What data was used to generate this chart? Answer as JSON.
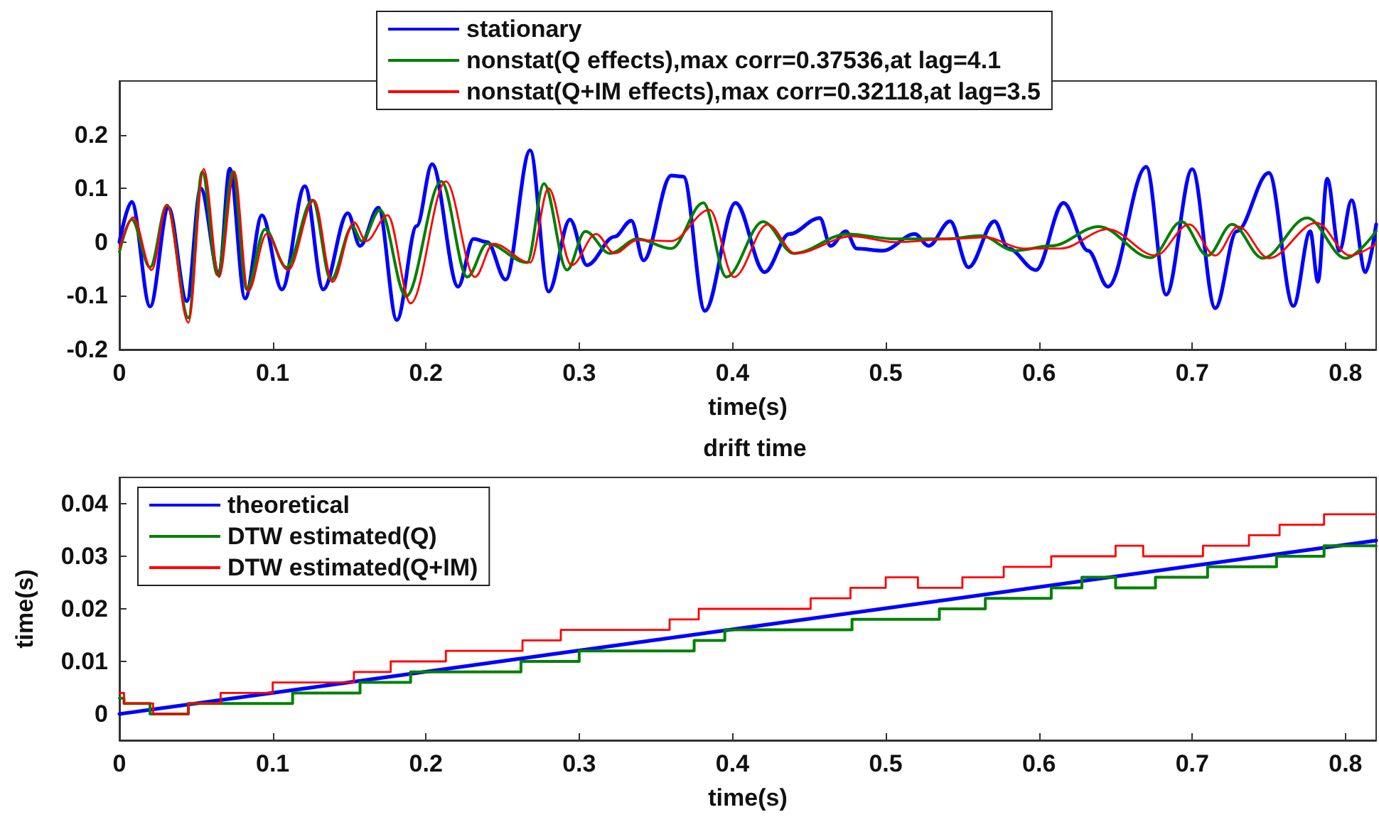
{
  "chart_data": [
    {
      "type": "line",
      "xlabel": "time(s)",
      "xlim": [
        0,
        0.82
      ],
      "xticks": [
        0,
        0.1,
        0.2,
        0.3,
        0.4,
        0.5,
        0.6,
        0.7,
        0.8
      ],
      "ylim": [
        -0.2,
        0.3
      ],
      "yticks": [
        -0.2,
        -0.1,
        0,
        0.1,
        0.2
      ],
      "legend": "top",
      "grid": false,
      "marker": "none",
      "series": [
        {
          "name": "stationary",
          "color": "#0000ff",
          "x": [
            0,
            0.008,
            0.02,
            0.032,
            0.044,
            0.053,
            0.065,
            0.072,
            0.082,
            0.093,
            0.106,
            0.121,
            0.133,
            0.149,
            0.157,
            0.169,
            0.181,
            0.194,
            0.204,
            0.221,
            0.231,
            0.24,
            0.252,
            0.268,
            0.28,
            0.294,
            0.305,
            0.323,
            0.334,
            0.342,
            0.36,
            0.368,
            0.382,
            0.402,
            0.421,
            0.437,
            0.457,
            0.464,
            0.474,
            0.481,
            0.498,
            0.519,
            0.528,
            0.542,
            0.554,
            0.571,
            0.58,
            0.598,
            0.616,
            0.632,
            0.645,
            0.67,
            0.683,
            0.7,
            0.715,
            0.729,
            0.75,
            0.766,
            0.777,
            0.782,
            0.788,
            0.796,
            0.804,
            0.813,
            0.82
          ],
          "values": [
            0,
            0.075,
            -0.12,
            0.064,
            -0.11,
            0.1,
            -0.06,
            0.137,
            -0.105,
            0.05,
            -0.088,
            0.104,
            -0.088,
            0.054,
            -0.007,
            0.064,
            -0.145,
            0.03,
            0.145,
            -0.083,
            0.006,
            0,
            -0.07,
            0.171,
            -0.092,
            0.042,
            -0.043,
            0.01,
            0.04,
            -0.034,
            0.124,
            0.122,
            -0.128,
            0.073,
            -0.056,
            0.015,
            0.045,
            -0.007,
            0.02,
            -0.012,
            -0.016,
            0.015,
            -0.007,
            0.039,
            -0.047,
            0.039,
            -0.012,
            -0.052,
            0.073,
            -0.016,
            -0.083,
            0.14,
            -0.098,
            0.136,
            -0.123,
            0.02,
            0.129,
            -0.119,
            0.02,
            -0.074,
            0.118,
            -0.016,
            0.078,
            -0.056,
            0.033
          ]
        },
        {
          "name": "nonstat(Q effects),max corr=0.37536,at lag=4.1",
          "color": "#008000",
          "x": [
            0,
            0.008,
            0.02,
            0.031,
            0.045,
            0.054,
            0.064,
            0.074,
            0.083,
            0.095,
            0.109,
            0.126,
            0.138,
            0.152,
            0.158,
            0.17,
            0.187,
            0.21,
            0.227,
            0.24,
            0.266,
            0.277,
            0.292,
            0.304,
            0.32,
            0.338,
            0.36,
            0.381,
            0.396,
            0.42,
            0.44,
            0.475,
            0.506,
            0.54,
            0.562,
            0.584,
            0.608,
            0.639,
            0.673,
            0.693,
            0.71,
            0.726,
            0.746,
            0.775,
            0.8,
            0.82
          ],
          "values": [
            -0.018,
            0.042,
            -0.047,
            0.069,
            -0.141,
            0.131,
            -0.061,
            0.131,
            -0.088,
            0.024,
            -0.047,
            0.078,
            -0.07,
            0.029,
            0.002,
            0.06,
            -0.101,
            0.113,
            -0.065,
            -0.003,
            -0.038,
            0.109,
            -0.052,
            0.02,
            -0.021,
            0.006,
            -0.012,
            0.073,
            -0.065,
            0.038,
            -0.021,
            0.015,
            0.006,
            0.006,
            0.012,
            -0.016,
            -0.007,
            0.029,
            -0.029,
            0.038,
            -0.025,
            0.033,
            -0.03,
            0.045,
            -0.03,
            0.02
          ]
        },
        {
          "name": "nonstat(Q+IM effects),max corr=0.32118,at lag=3.5",
          "color": "#ff0000",
          "x": [
            0,
            0.009,
            0.021,
            0.031,
            0.045,
            0.055,
            0.065,
            0.075,
            0.084,
            0.096,
            0.11,
            0.127,
            0.139,
            0.153,
            0.161,
            0.175,
            0.19,
            0.213,
            0.232,
            0.244,
            0.268,
            0.28,
            0.295,
            0.311,
            0.323,
            0.338,
            0.36,
            0.385,
            0.401,
            0.423,
            0.441,
            0.478,
            0.506,
            0.543,
            0.565,
            0.59,
            0.614,
            0.645,
            0.676,
            0.698,
            0.715,
            0.73,
            0.75,
            0.781,
            0.803,
            0.82
          ],
          "values": [
            -0.012,
            0.046,
            -0.052,
            0.069,
            -0.15,
            0.136,
            -0.065,
            0.131,
            -0.092,
            0.015,
            -0.052,
            0.078,
            -0.074,
            0.037,
            0.002,
            0.05,
            -0.114,
            0.113,
            -0.065,
            -0.003,
            -0.038,
            0.1,
            -0.043,
            0.015,
            -0.021,
            0.004,
            0.002,
            0.06,
            -0.065,
            0.033,
            -0.021,
            0.011,
            0,
            0.006,
            0.009,
            -0.012,
            -0.012,
            0.024,
            -0.025,
            0.033,
            -0.025,
            0.029,
            -0.03,
            0.036,
            -0.025,
            -0.003
          ]
        }
      ]
    },
    {
      "type": "step",
      "title": "drift time",
      "xlabel": "time(s)",
      "ylabel": "time(s)",
      "xlim": [
        0,
        0.82
      ],
      "xticks": [
        0,
        0.1,
        0.2,
        0.3,
        0.4,
        0.5,
        0.6,
        0.7,
        0.8
      ],
      "ylim": [
        -0.005,
        0.045
      ],
      "yticks": [
        0,
        0.01,
        0.02,
        0.03,
        0.04
      ],
      "legend": "top left",
      "grid": false,
      "marker": "none",
      "series": [
        {
          "name": "theoretical",
          "type": "line",
          "color": "#0000ff",
          "x": [
            0,
            0.82
          ],
          "values": [
            0,
            0.033
          ]
        },
        {
          "name": "DTW estimated(Q)",
          "color": "#008000",
          "x": [
            0,
            0.003,
            0.02,
            0.045,
            0.113,
            0.157,
            0.19,
            0.262,
            0.3,
            0.375,
            0.395,
            0.478,
            0.535,
            0.565,
            0.608,
            0.628,
            0.65,
            0.676,
            0.71,
            0.755,
            0.786,
            0.82
          ],
          "values": [
            0.003,
            0.002,
            0,
            0.002,
            0.004,
            0.006,
            0.008,
            0.01,
            0.012,
            0.014,
            0.016,
            0.018,
            0.02,
            0.022,
            0.024,
            0.026,
            0.024,
            0.026,
            0.028,
            0.03,
            0.032,
            0.032
          ]
        },
        {
          "name": "DTW estimated(Q+IM)",
          "color": "#ff0000",
          "x": [
            0,
            0.003,
            0.022,
            0.045,
            0.066,
            0.1,
            0.153,
            0.177,
            0.213,
            0.263,
            0.288,
            0.359,
            0.378,
            0.451,
            0.477,
            0.5,
            0.521,
            0.55,
            0.577,
            0.608,
            0.65,
            0.668,
            0.707,
            0.737,
            0.757,
            0.786,
            0.82
          ],
          "values": [
            0.004,
            0.002,
            0,
            0.002,
            0.004,
            0.006,
            0.008,
            0.01,
            0.012,
            0.014,
            0.016,
            0.018,
            0.02,
            0.022,
            0.024,
            0.026,
            0.024,
            0.026,
            0.028,
            0.03,
            0.032,
            0.03,
            0.032,
            0.034,
            0.036,
            0.038,
            0.038
          ]
        }
      ]
    }
  ]
}
